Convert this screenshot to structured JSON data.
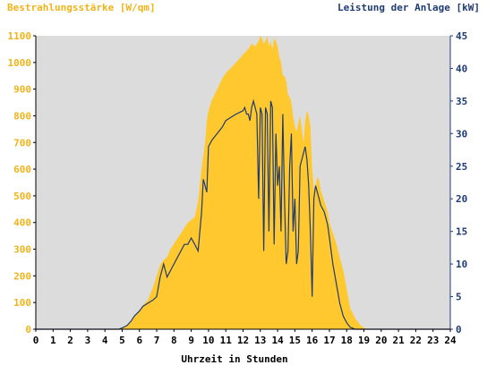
{
  "chart_data": {
    "type": "area",
    "ylabel_left": "Bestrahlungsstärke [W/qm]",
    "ylabel_right": "Leistung der Anlage [kW]",
    "xlabel": "Uhrzeit in Stunden",
    "x_ticks": [
      "0",
      "1",
      "2",
      "3",
      "4",
      "5",
      "6",
      "7",
      "8",
      "9",
      "10",
      "11",
      "12",
      "13",
      "14",
      "15",
      "16",
      "17",
      "18",
      "19",
      "20",
      "21",
      "22",
      "23",
      "24"
    ],
    "y_left_ticks": [
      "0",
      "100",
      "200",
      "300",
      "400",
      "500",
      "600",
      "700",
      "800",
      "900",
      "1000",
      "1100"
    ],
    "y_right_ticks": [
      "0",
      "5",
      "10",
      "15",
      "20",
      "25",
      "30",
      "35",
      "40",
      "45"
    ],
    "xlim": [
      0,
      24
    ],
    "ylim_left": [
      0,
      1100
    ],
    "ylim_right": [
      0,
      45
    ],
    "grid": false,
    "series": [
      {
        "name": "Bestrahlungsstärke [W/qm]",
        "axis": "left",
        "type": "area",
        "x": [
          0,
          4.8,
          5,
          5.3,
          5.5,
          5.7,
          6,
          6.2,
          6.5,
          6.8,
          7,
          7.2,
          7.4,
          7.6,
          7.8,
          8,
          8.2,
          8.4,
          8.6,
          8.8,
          9,
          9.2,
          9.4,
          9.6,
          9.8,
          9.9,
          10,
          10.2,
          10.5,
          10.8,
          11,
          11.3,
          11.6,
          12,
          12.3,
          12.5,
          12.7,
          12.9,
          13,
          13.1,
          13.2,
          13.3,
          13.4,
          13.5,
          13.6,
          13.7,
          13.8,
          13.9,
          14,
          14.1,
          14.2,
          14.3,
          14.4,
          14.5,
          14.6,
          14.7,
          14.8,
          14.9,
          15,
          15.1,
          15.2,
          15.3,
          15.4,
          15.5,
          15.6,
          15.7,
          15.8,
          15.9,
          16,
          16.1,
          16.2,
          16.3,
          16.4,
          16.5,
          16.7,
          16.9,
          17,
          17.2,
          17.4,
          17.6,
          17.8,
          18,
          18.2,
          18.5,
          18.8,
          19,
          19.2,
          24
        ],
        "y": [
          0,
          0,
          5,
          15,
          30,
          50,
          70,
          90,
          110,
          160,
          200,
          240,
          260,
          270,
          300,
          320,
          340,
          360,
          380,
          400,
          410,
          420,
          480,
          600,
          700,
          780,
          820,
          860,
          900,
          940,
          960,
          980,
          1000,
          1030,
          1050,
          1070,
          1060,
          1080,
          1100,
          1090,
          1070,
          1080,
          1100,
          1060,
          1080,
          1050,
          1090,
          1080,
          1060,
          1020,
          1000,
          950,
          950,
          930,
          880,
          870,
          850,
          800,
          760,
          740,
          770,
          800,
          750,
          700,
          780,
          820,
          800,
          760,
          600,
          520,
          540,
          570,
          560,
          520,
          480,
          440,
          400,
          360,
          320,
          270,
          220,
          150,
          80,
          40,
          15,
          5,
          0,
          0
        ]
      },
      {
        "name": "Leistung der Anlage [kW]",
        "axis": "right",
        "type": "line",
        "x": [
          0,
          4.8,
          5,
          5.3,
          5.5,
          5.7,
          6,
          6.2,
          6.5,
          6.8,
          7,
          7.2,
          7.4,
          7.6,
          7.8,
          8,
          8.2,
          8.4,
          8.6,
          8.8,
          9,
          9.2,
          9.4,
          9.6,
          9.7,
          9.8,
          9.9,
          10,
          10.2,
          10.5,
          10.8,
          11,
          11.3,
          11.6,
          12,
          12.1,
          12.2,
          12.3,
          12.4,
          12.5,
          12.6,
          12.7,
          12.8,
          12.9,
          13,
          13.1,
          13.2,
          13.3,
          13.4,
          13.5,
          13.6,
          13.7,
          13.8,
          13.9,
          14,
          14.1,
          14.2,
          14.3,
          14.4,
          14.5,
          14.6,
          14.7,
          14.8,
          14.9,
          15,
          15.1,
          15.2,
          15.3,
          15.4,
          15.5,
          15.6,
          15.7,
          15.8,
          15.9,
          16,
          16.1,
          16.2,
          16.3,
          16.4,
          16.5,
          16.7,
          16.9,
          17,
          17.2,
          17.4,
          17.6,
          17.8,
          18,
          18.2,
          18.5,
          18.8,
          19,
          19.2,
          24
        ],
        "y": [
          0,
          0,
          0.2,
          0.6,
          1.2,
          2,
          2.8,
          3.5,
          4,
          4.5,
          5,
          8,
          10,
          8,
          9,
          10,
          11,
          12,
          13,
          13,
          14,
          13,
          12,
          18,
          23,
          22,
          21,
          28,
          29,
          30,
          31,
          32,
          32.5,
          33,
          33.5,
          34,
          33,
          33,
          32,
          34,
          35,
          34,
          33,
          20,
          34,
          33,
          12,
          34,
          33,
          15,
          35,
          34,
          13,
          30,
          22,
          25,
          15,
          33,
          20,
          10,
          12,
          25,
          30,
          15,
          20,
          10,
          12,
          25,
          26,
          27,
          28,
          26,
          22,
          15,
          5,
          20,
          22,
          21,
          20,
          19,
          18,
          16,
          14,
          10,
          7,
          4,
          2,
          1,
          0.3,
          0,
          0,
          0,
          0,
          0
        ]
      }
    ],
    "colors": {
      "area_fill": "#ffc82e",
      "plot_bg": "#dcdcdc",
      "line": "#1f3b73",
      "left_axis": "#f0b31a",
      "right_axis": "#1f3b73"
    }
  }
}
